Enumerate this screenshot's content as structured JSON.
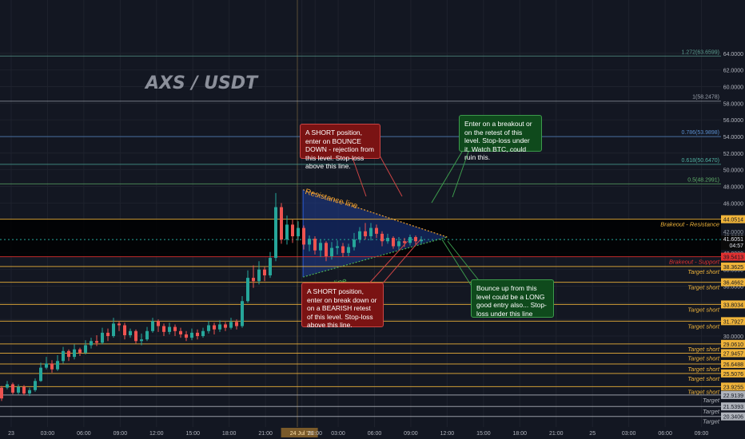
{
  "chart_data": {
    "type": "candlestick",
    "title": "AXS / USDT",
    "ylim": [
      20,
      64
    ],
    "y_ticks": [
      30,
      32,
      34,
      36,
      38,
      40,
      42,
      44,
      46,
      48,
      50,
      52,
      54,
      56,
      58,
      60,
      62,
      64
    ],
    "y_tick_labels": [
      "30.0000",
      "32.0000",
      "34.0000",
      "36.0000",
      "38.0000",
      "40.0000",
      "42.0000",
      "44.0000",
      "46.0000",
      "48.0000",
      "50.0000",
      "52.0000",
      "54.0000",
      "56.0000",
      "58.0000",
      "60.0000",
      "62.0000",
      "64.0000"
    ],
    "x_ticks": [
      {
        "h": 0,
        "label": "23"
      },
      {
        "h": 3,
        "label": "03:00"
      },
      {
        "h": 6,
        "label": "06:00"
      },
      {
        "h": 9,
        "label": "09:00"
      },
      {
        "h": 12,
        "label": "12:00"
      },
      {
        "h": 15,
        "label": "15:00"
      },
      {
        "h": 18,
        "label": "18:00"
      },
      {
        "h": 21,
        "label": "21:00"
      },
      {
        "h": 24,
        "label": "24 Jul '21",
        "highlight": true
      },
      {
        "h": 25.1,
        "label": "00:00"
      },
      {
        "h": 27,
        "label": "03:00"
      },
      {
        "h": 30,
        "label": "06:00"
      },
      {
        "h": 33,
        "label": "09:00"
      },
      {
        "h": 36,
        "label": "12:00"
      },
      {
        "h": 39,
        "label": "15:00"
      },
      {
        "h": 42,
        "label": "18:00"
      },
      {
        "h": 45,
        "label": "21:00"
      },
      {
        "h": 48,
        "label": "25"
      },
      {
        "h": 51,
        "label": "03:00"
      },
      {
        "h": 54,
        "label": "06:00"
      },
      {
        "h": 57,
        "label": "09:00"
      }
    ],
    "fib_levels": [
      {
        "ratio": "1.272",
        "value": 63.6599,
        "label": "1.272(63.6599)",
        "color": "#5b9e8f"
      },
      {
        "ratio": "1",
        "value": 58.2478,
        "label": "1(58.2478)",
        "color": "#9aa1ac"
      },
      {
        "ratio": "0.786",
        "value": 53.9898,
        "label": "0.786(53.9898)",
        "color": "#5a8fd0"
      },
      {
        "ratio": "0.618",
        "value": 50.647,
        "label": "0.618(50.6470)",
        "color": "#4fb0a0"
      },
      {
        "ratio": "0.5",
        "value": 48.2991,
        "label": "0.5(48.2991)",
        "color": "#5fb06a"
      }
    ],
    "levels": [
      {
        "value": 44.0514,
        "label": "Brakeout - Resistance",
        "price": "44.0514",
        "color": "#f0b43a"
      },
      {
        "value": 39.5413,
        "label": "Brakeout - Support",
        "price": "39.5413",
        "color": "#e03030"
      },
      {
        "value": 38.3625,
        "label": "Target short",
        "price": "38.3625",
        "color": "#f0b43a"
      },
      {
        "value": 36.4662,
        "label": "Target short",
        "price": "36.4662",
        "color": "#f0b43a"
      },
      {
        "value": 33.8034,
        "label": "Target short",
        "price": "33.8034",
        "color": "#f0b43a"
      },
      {
        "value": 31.7927,
        "label": "Target short",
        "price": "31.7927",
        "color": "#f0b43a"
      },
      {
        "value": 29.061,
        "label": "Target short",
        "price": "29.0610",
        "color": "#f0b43a"
      },
      {
        "value": 27.9457,
        "label": "Target short",
        "price": "27.9457",
        "color": "#f0b43a"
      },
      {
        "value": 26.6488,
        "label": "Target short",
        "price": "26.6488",
        "color": "#f0b43a"
      },
      {
        "value": 25.5076,
        "label": "Target short",
        "price": "25.5076",
        "color": "#f0b43a"
      },
      {
        "value": 23.9255,
        "label": "Target short",
        "price": "23.9255",
        "color": "#f0b43a"
      },
      {
        "value": 22.9139,
        "label": "Target",
        "price": "22.9139",
        "color": "#b0b4bc"
      },
      {
        "value": 21.5393,
        "label": "Target",
        "price": "21.5393",
        "color": "#b0b4bc"
      },
      {
        "value": 20.3406,
        "label": "Target",
        "price": "20.3406",
        "color": "#b0b4bc"
      }
    ],
    "current_price": {
      "value": 41.6051,
      "label": "41.6051",
      "countdown": "04:57"
    },
    "other_price_label": {
      "value": 42.0,
      "label": "42.0000"
    },
    "triangle": {
      "resistance": {
        "h0": 24.1,
        "p0": 47.6,
        "h1": 36.0,
        "p1": 41.9,
        "label": "Resistance line"
      },
      "support": {
        "h0": 24.1,
        "p0": 37.1,
        "h1": 36.0,
        "p1": 41.9,
        "label": "Support line"
      },
      "fill": "#1f3d8f"
    },
    "ohlc": [
      [
        23.8,
        22.5,
        24.0,
        22.2
      ],
      [
        23.8,
        24.2,
        24.6,
        23.6
      ],
      [
        24.2,
        23.2,
        24.4,
        23.0
      ],
      [
        23.2,
        23.9,
        24.2,
        23.0
      ],
      [
        23.9,
        23.1,
        24.1,
        22.9
      ],
      [
        23.1,
        23.5,
        23.8,
        22.8
      ],
      [
        23.5,
        24.6,
        24.9,
        23.3
      ],
      [
        24.6,
        26.2,
        26.8,
        24.5
      ],
      [
        26.2,
        26.7,
        27.5,
        26.0
      ],
      [
        26.7,
        26.0,
        27.1,
        25.6
      ],
      [
        26.0,
        27.0,
        27.7,
        25.8
      ],
      [
        27.0,
        28.2,
        28.7,
        26.7
      ],
      [
        28.2,
        27.5,
        28.4,
        27.0
      ],
      [
        27.5,
        28.4,
        29.0,
        27.2
      ],
      [
        28.4,
        28.0,
        28.6,
        27.6
      ],
      [
        28.0,
        28.9,
        29.5,
        27.8
      ],
      [
        28.9,
        29.4,
        29.8,
        28.5
      ],
      [
        29.4,
        29.2,
        30.1,
        28.8
      ],
      [
        29.2,
        30.4,
        31.0,
        29.0
      ],
      [
        30.4,
        30.0,
        30.9,
        29.4
      ],
      [
        30.0,
        31.5,
        32.2,
        29.8
      ],
      [
        31.5,
        31.3,
        31.8,
        30.6
      ],
      [
        31.3,
        30.1,
        31.6,
        29.6
      ],
      [
        30.1,
        30.6,
        30.9,
        29.8
      ],
      [
        30.6,
        29.4,
        30.8,
        29.1
      ],
      [
        29.4,
        29.6,
        30.3,
        28.9
      ],
      [
        29.6,
        30.6,
        31.1,
        29.4
      ],
      [
        30.6,
        31.8,
        32.2,
        30.4
      ],
      [
        31.8,
        31.2,
        32.0,
        30.5
      ],
      [
        31.2,
        30.5,
        31.5,
        30.0
      ],
      [
        30.5,
        31.1,
        31.6,
        30.2
      ],
      [
        31.1,
        30.6,
        31.4,
        30.0
      ],
      [
        30.6,
        30.2,
        31.0,
        29.8
      ],
      [
        30.2,
        29.8,
        30.6,
        29.4
      ],
      [
        29.8,
        30.4,
        30.9,
        29.5
      ],
      [
        30.4,
        30.0,
        30.8,
        29.6
      ],
      [
        30.0,
        30.6,
        31.0,
        29.8
      ],
      [
        30.6,
        31.3,
        31.8,
        30.3
      ],
      [
        31.3,
        30.8,
        31.6,
        30.2
      ],
      [
        30.8,
        31.4,
        31.9,
        30.5
      ],
      [
        31.4,
        31.0,
        31.7,
        30.6
      ],
      [
        31.0,
        31.7,
        32.2,
        30.8
      ],
      [
        31.7,
        31.2,
        32.0,
        30.8
      ],
      [
        31.2,
        34.2,
        34.8,
        31.0
      ],
      [
        34.2,
        37.0,
        37.9,
        34.0
      ],
      [
        37.0,
        36.6,
        38.5,
        35.8
      ],
      [
        36.6,
        38.0,
        39.0,
        36.2
      ],
      [
        38.0,
        37.3,
        38.3,
        36.6
      ],
      [
        37.3,
        39.4,
        40.1,
        37.0
      ],
      [
        39.4,
        45.5,
        47.2,
        39.0
      ],
      [
        45.5,
        41.6,
        46.0,
        41.1
      ],
      [
        41.6,
        43.4,
        44.5,
        41.0
      ],
      [
        43.4,
        42.0,
        44.0,
        41.2
      ],
      [
        42.0,
        43.0,
        43.8,
        41.5
      ],
      [
        43.0,
        41.0,
        43.3,
        40.4
      ],
      [
        41.0,
        41.7,
        42.1,
        40.2
      ],
      [
        41.7,
        40.3,
        42.0,
        39.8
      ],
      [
        40.3,
        41.2,
        41.6,
        39.5
      ],
      [
        41.2,
        39.6,
        41.4,
        39.0
      ],
      [
        39.6,
        40.6,
        41.3,
        39.2
      ],
      [
        40.6,
        40.8,
        41.5,
        39.8
      ],
      [
        40.8,
        40.0,
        41.2,
        39.5
      ],
      [
        40.0,
        40.7,
        41.1,
        39.6
      ],
      [
        40.7,
        41.6,
        42.4,
        40.3
      ],
      [
        41.6,
        42.6,
        43.1,
        41.2
      ],
      [
        42.6,
        42.0,
        43.6,
        41.6
      ],
      [
        42.0,
        43.0,
        43.6,
        41.5
      ],
      [
        43.0,
        42.3,
        43.4,
        41.8
      ],
      [
        42.3,
        41.4,
        42.6,
        40.8
      ],
      [
        41.4,
        41.8,
        42.3,
        41.1
      ],
      [
        41.8,
        40.8,
        42.0,
        40.5
      ],
      [
        40.8,
        41.4,
        41.9,
        40.3
      ],
      [
        41.4,
        41.2,
        41.8,
        40.7
      ],
      [
        41.2,
        41.9,
        42.2,
        40.9
      ],
      [
        41.9,
        41.4,
        42.1,
        41.0
      ],
      [
        41.4,
        41.6,
        42.0,
        41.1
      ]
    ]
  },
  "annotations": {
    "short_top": "A SHORT position, enter on BOUNCE DOWN - rejection from this level. Stop-loss above this line.",
    "short_bottom": "A SHORT position, enter on break down or on a BEARISH retest of this level. Stop-loss above this line.",
    "long_top": "Enter on a breakout or on the retest of this level. Stop-loss under it. Watch BTC, could ruin this.",
    "long_bottom": "Bounce up from this level could be a LONG good entry also... Stop-loss under this line"
  }
}
